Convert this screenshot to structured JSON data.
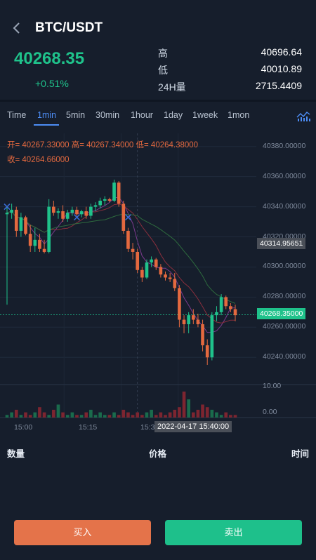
{
  "header": {
    "pair": "BTC/USDT",
    "last_price": "40268.35",
    "change_pct": "+0.51%",
    "stats": [
      {
        "label": "高",
        "value": "40696.64"
      },
      {
        "label": "低",
        "value": "40010.89"
      },
      {
        "label": "24H量",
        "value": "2715.4409"
      }
    ]
  },
  "tabs": [
    {
      "label": "Time"
    },
    {
      "label": "1min",
      "active": true
    },
    {
      "label": "5min"
    },
    {
      "label": "30min"
    },
    {
      "label": "1hour"
    },
    {
      "label": "1day"
    },
    {
      "label": "1week"
    },
    {
      "label": "1mon"
    }
  ],
  "ohlc": {
    "line1": "开= 40267.33000  高= 40267.34000  低= 40264.38000",
    "line2": "收= 40264.66000"
  },
  "chart_data": {
    "type": "candlestick",
    "y_ticks": [
      "40380.00000",
      "40360.00000",
      "40340.00000",
      "40320.00000",
      "40300.00000",
      "40280.00000",
      "40260.00000",
      "40240.00000"
    ],
    "y_range": [
      40228,
      40385
    ],
    "crosshair_price": "40314.95651",
    "current_price_label": "40268.35000",
    "current_price": 40268.35,
    "x_ticks": [
      "15:00",
      "15:15",
      "15:3"
    ],
    "crosshair_time": "2022-04-17 15:40:00",
    "volume_ticks": [
      "10.00",
      "0.00"
    ],
    "volume_max": 10,
    "candles": [
      {
        "o": 40335,
        "h": 40340,
        "l": 40275,
        "c": 40336
      },
      {
        "o": 40336,
        "h": 40342,
        "l": 40332,
        "c": 40338
      },
      {
        "o": 40338,
        "h": 40340,
        "l": 40320,
        "c": 40324
      },
      {
        "o": 40324,
        "h": 40336,
        "l": 40320,
        "c": 40333
      },
      {
        "o": 40333,
        "h": 40334,
        "l": 40321,
        "c": 40322
      },
      {
        "o": 40322,
        "h": 40328,
        "l": 40310,
        "c": 40314
      },
      {
        "o": 40314,
        "h": 40326,
        "l": 40310,
        "c": 40318
      },
      {
        "o": 40318,
        "h": 40322,
        "l": 40310,
        "c": 40312
      },
      {
        "o": 40312,
        "h": 40318,
        "l": 40309,
        "c": 40310
      },
      {
        "o": 40310,
        "h": 40345,
        "l": 40309,
        "c": 40340
      },
      {
        "o": 40340,
        "h": 40344,
        "l": 40334,
        "c": 40336
      },
      {
        "o": 40336,
        "h": 40339,
        "l": 40332,
        "c": 40337
      },
      {
        "o": 40337,
        "h": 40341,
        "l": 40330,
        "c": 40332
      },
      {
        "o": 40332,
        "h": 40338,
        "l": 40330,
        "c": 40336
      },
      {
        "o": 40336,
        "h": 40340,
        "l": 40334,
        "c": 40338
      },
      {
        "o": 40338,
        "h": 40340,
        "l": 40334,
        "c": 40335
      },
      {
        "o": 40335,
        "h": 40338,
        "l": 40333,
        "c": 40337
      },
      {
        "o": 40337,
        "h": 40340,
        "l": 40332,
        "c": 40334
      },
      {
        "o": 40334,
        "h": 40342,
        "l": 40332,
        "c": 40340
      },
      {
        "o": 40340,
        "h": 40343,
        "l": 40337,
        "c": 40341
      },
      {
        "o": 40341,
        "h": 40346,
        "l": 40339,
        "c": 40344
      },
      {
        "o": 40344,
        "h": 40347,
        "l": 40341,
        "c": 40345
      },
      {
        "o": 40345,
        "h": 40346,
        "l": 40343,
        "c": 40344
      },
      {
        "o": 40344,
        "h": 40358,
        "l": 40343,
        "c": 40356
      },
      {
        "o": 40356,
        "h": 40357,
        "l": 40340,
        "c": 40342
      },
      {
        "o": 40342,
        "h": 40344,
        "l": 40322,
        "c": 40324
      },
      {
        "o": 40324,
        "h": 40326,
        "l": 40310,
        "c": 40312
      },
      {
        "o": 40312,
        "h": 40316,
        "l": 40305,
        "c": 40310
      },
      {
        "o": 40310,
        "h": 40312,
        "l": 40296,
        "c": 40298
      },
      {
        "o": 40298,
        "h": 40300,
        "l": 40290,
        "c": 40293
      },
      {
        "o": 40293,
        "h": 40305,
        "l": 40292,
        "c": 40303
      },
      {
        "o": 40303,
        "h": 40307,
        "l": 40300,
        "c": 40305
      },
      {
        "o": 40305,
        "h": 40306,
        "l": 40298,
        "c": 40300
      },
      {
        "o": 40300,
        "h": 40302,
        "l": 40293,
        "c": 40295
      },
      {
        "o": 40295,
        "h": 40297,
        "l": 40291,
        "c": 40293
      },
      {
        "o": 40293,
        "h": 40296,
        "l": 40290,
        "c": 40292
      },
      {
        "o": 40292,
        "h": 40296,
        "l": 40284,
        "c": 40286
      },
      {
        "o": 40286,
        "h": 40288,
        "l": 40260,
        "c": 40265
      },
      {
        "o": 40265,
        "h": 40268,
        "l": 40256,
        "c": 40262
      },
      {
        "o": 40262,
        "h": 40270,
        "l": 40256,
        "c": 40268
      },
      {
        "o": 40268,
        "h": 40272,
        "l": 40262,
        "c": 40265
      },
      {
        "o": 40265,
        "h": 40269,
        "l": 40260,
        "c": 40262
      },
      {
        "o": 40262,
        "h": 40265,
        "l": 40244,
        "c": 40248
      },
      {
        "o": 40248,
        "h": 40252,
        "l": 40235,
        "c": 40240
      },
      {
        "o": 40240,
        "h": 40270,
        "l": 40238,
        "c": 40268
      },
      {
        "o": 40268,
        "h": 40274,
        "l": 40264,
        "c": 40270
      },
      {
        "o": 40270,
        "h": 40282,
        "l": 40268,
        "c": 40280
      },
      {
        "o": 40280,
        "h": 40281,
        "l": 40272,
        "c": 40274
      },
      {
        "o": 40274,
        "h": 40276,
        "l": 40270,
        "c": 40272
      },
      {
        "o": 40272,
        "h": 40275,
        "l": 40264,
        "c": 40268
      }
    ],
    "volumes": [
      1,
      2,
      3,
      1,
      2,
      1,
      2,
      4,
      2,
      1,
      3,
      5,
      2,
      1,
      2,
      1,
      1,
      2,
      3,
      1,
      2,
      1,
      1,
      2,
      1,
      3,
      2,
      1,
      2,
      1,
      2,
      3,
      1,
      2,
      1,
      2,
      3,
      4,
      10,
      7,
      2,
      3,
      5,
      4,
      3,
      2,
      1,
      2,
      1,
      1
    ]
  },
  "bottom": {
    "col_qty": "数量",
    "col_price": "价格",
    "col_time": "时间"
  },
  "buttons": {
    "buy": "买入",
    "sell": "卖出"
  },
  "colors": {
    "up": "#1fc28b",
    "down": "#e4693f",
    "accent": "#4d8df5",
    "background": "#161e2c"
  }
}
